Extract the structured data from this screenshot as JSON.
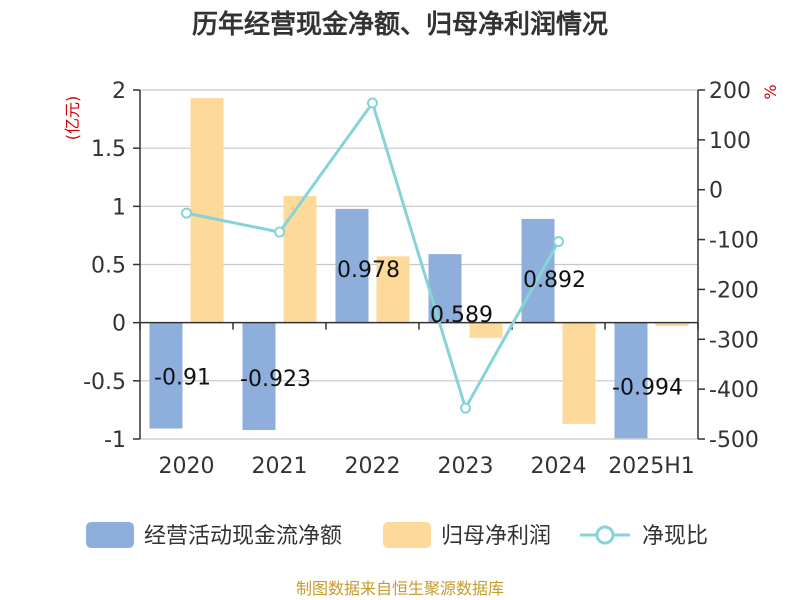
{
  "title": "历年经营现金净额、归母净利润情况",
  "source": "制图数据来自恒生聚源数据库",
  "colors": {
    "operating_cf": "#8eaedb",
    "net_profit": "#fdd99a",
    "ratio_line": "#86d3d8",
    "grid": "#c8c8c8",
    "axis": "#333333",
    "unit": "#d40000"
  },
  "chart_data": {
    "type": "bar",
    "categories": [
      "2020",
      "2021",
      "2022",
      "2023",
      "2024",
      "2025H1"
    ],
    "left_axis": {
      "unit": "(亿元)",
      "ylim": [
        -1,
        2
      ],
      "ticks": [
        "2",
        "1.5",
        "1",
        "0.5",
        "0",
        "-0.5",
        "-1"
      ]
    },
    "right_axis": {
      "unit": "%",
      "ylim": [
        -500,
        200
      ],
      "ticks": [
        "200",
        "100",
        "0",
        "-100",
        "-200",
        "-300",
        "-400",
        "-500"
      ]
    },
    "series": [
      {
        "name": "经营活动现金流净额",
        "type": "bar",
        "axis": "left",
        "values": [
          -0.91,
          -0.923,
          0.978,
          0.589,
          0.892,
          -0.994
        ],
        "labels": [
          "-0.91",
          "-0.923",
          "0.978",
          "0.589",
          "0.892",
          "-0.994"
        ]
      },
      {
        "name": "归母净利润",
        "type": "bar",
        "axis": "left",
        "values": [
          1.93,
          1.09,
          0.57,
          -0.13,
          -0.87,
          -0.03
        ]
      },
      {
        "name": "净现比",
        "type": "line",
        "axis": "right",
        "values": [
          -47,
          -85,
          174,
          -438,
          -104,
          null
        ]
      }
    ],
    "grid": true,
    "legend_position": "bottom"
  }
}
